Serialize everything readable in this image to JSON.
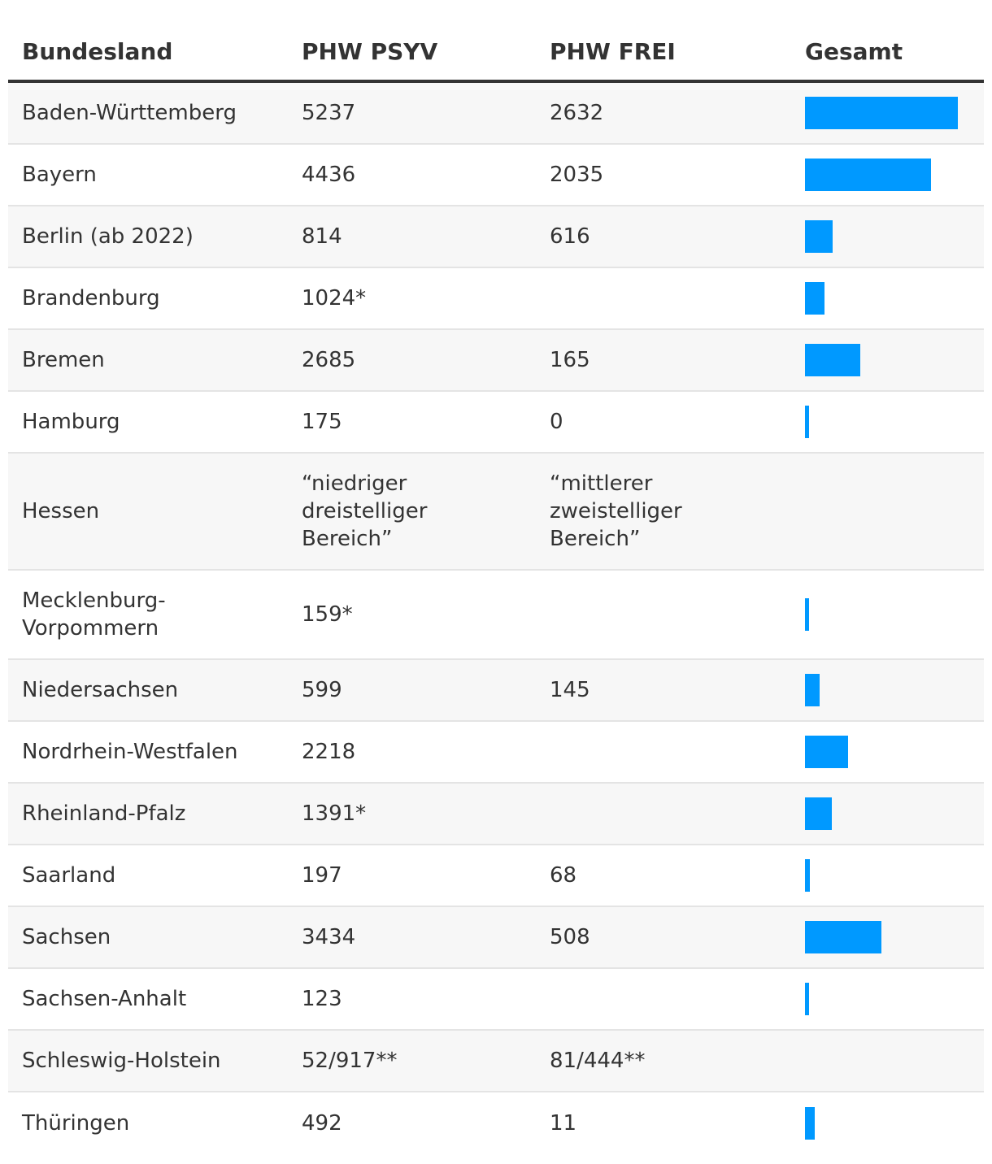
{
  "table": {
    "headers": {
      "bundesland": "Bundesland",
      "psyv": "PHW PSYV",
      "frei": "PHW FREI",
      "gesamt": "Gesamt"
    }
  },
  "chart_data": {
    "type": "table",
    "title": "",
    "bar_color": "#0099ff",
    "bar_max": 7869,
    "columns": [
      "Bundesland",
      "PHW PSYV",
      "PHW FREI",
      "Gesamt"
    ],
    "rows": [
      {
        "land": "Baden-Württemberg",
        "psyv": "5237",
        "frei": "2632",
        "gesamt": 7869
      },
      {
        "land": "Bayern",
        "psyv": "4436",
        "frei": "2035",
        "gesamt": 6471
      },
      {
        "land": "Berlin (ab 2022)",
        "psyv": "814",
        "frei": "616",
        "gesamt": 1430
      },
      {
        "land": "Brandenburg",
        "psyv": "1024*",
        "frei": "",
        "gesamt": 1024
      },
      {
        "land": "Bremen",
        "psyv": "2685",
        "frei": "165",
        "gesamt": 2850
      },
      {
        "land": "Hamburg",
        "psyv": "175",
        "frei": "0",
        "gesamt": 175
      },
      {
        "land": "Hessen",
        "psyv": "“niedriger dreistelliger Bereich”",
        "frei": "“mittlerer zweistelliger Bereich”",
        "gesamt": null
      },
      {
        "land": "Mecklenburg-Vorpommern",
        "psyv": "159*",
        "frei": "",
        "gesamt": 159
      },
      {
        "land": "Niedersachsen",
        "psyv": "599",
        "frei": "145",
        "gesamt": 744
      },
      {
        "land": "Nordrhein-Westfalen",
        "psyv": "2218",
        "frei": "",
        "gesamt": 2218
      },
      {
        "land": "Rheinland-Pfalz",
        "psyv": "1391*",
        "frei": "",
        "gesamt": 1391
      },
      {
        "land": "Saarland",
        "psyv": "197",
        "frei": "68",
        "gesamt": 265
      },
      {
        "land": "Sachsen",
        "psyv": "3434",
        "frei": "508",
        "gesamt": 3942
      },
      {
        "land": "Sachsen-Anhalt",
        "psyv": "123",
        "frei": "",
        "gesamt": 123
      },
      {
        "land": "Schleswig-Holstein",
        "psyv": "52/917**",
        "frei": "81/444**",
        "gesamt": null
      },
      {
        "land": "Thüringen",
        "psyv": "492",
        "frei": "11",
        "gesamt": 503
      }
    ]
  }
}
